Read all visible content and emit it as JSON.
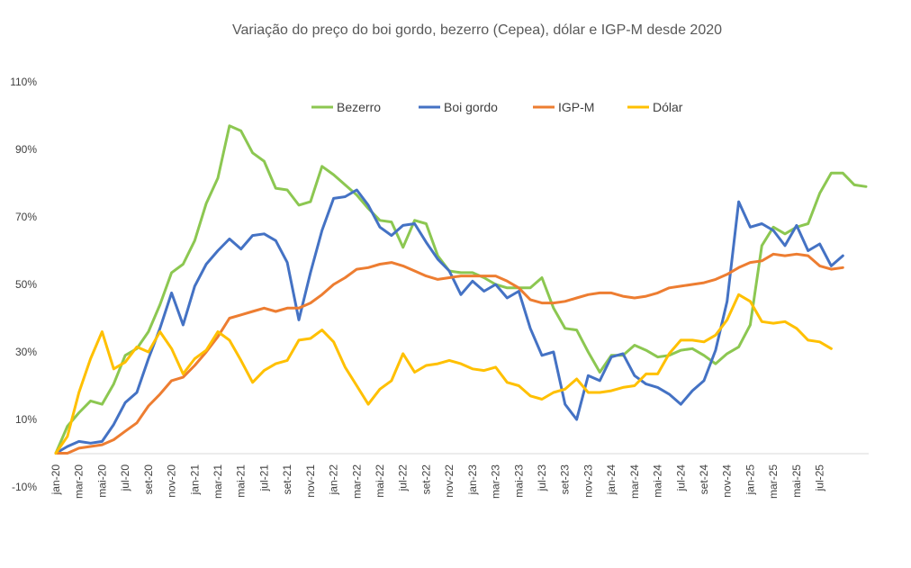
{
  "chart_data": {
    "type": "line",
    "title": "Variação do preço do boi gordo, bezerro (Cepea), dólar e IGP-M desde 2020",
    "xlabel": "",
    "ylabel": "",
    "ylim": [
      -10,
      110
    ],
    "yticks": [
      "-10%",
      "10%",
      "30%",
      "50%",
      "70%",
      "90%",
      "110%"
    ],
    "ytick_values": [
      -10,
      10,
      30,
      50,
      70,
      90,
      110
    ],
    "grid": false,
    "legend_position": "top-center",
    "x_labels": [
      "jan-20",
      "mar-20",
      "mai-20",
      "jul-20",
      "set-20",
      "nov-20",
      "jan-21",
      "mar-21",
      "mai-21",
      "jul-21",
      "set-21",
      "nov-21",
      "jan-22",
      "mar-22",
      "mai-22",
      "jul-22",
      "set-22",
      "nov-22",
      "jan-23",
      "mar-23",
      "mai-23",
      "jul-23",
      "set-23",
      "nov-23",
      "jan-24",
      "mar-24",
      "mai-24",
      "jul-24",
      "set-24",
      "nov-24",
      "jan-25",
      "mar-25",
      "mai-25",
      "jul-25"
    ],
    "x_label_step": 2,
    "series": [
      {
        "name": "Bezerro",
        "color": "#8CC751",
        "values": [
          0,
          8,
          12,
          15.5,
          14.5,
          20.5,
          29,
          31,
          36,
          44,
          53.5,
          56,
          63,
          74,
          81.5,
          97,
          95.5,
          89,
          86.5,
          78.5,
          78,
          73.5,
          74.5,
          85,
          82.5,
          79.5,
          76.5,
          72.5,
          69,
          68.5,
          61,
          69,
          68,
          58.5,
          54,
          53.5,
          53.5,
          52,
          50,
          49,
          49,
          49,
          52,
          43,
          37,
          36.5,
          30,
          24,
          29,
          29,
          32,
          30.5,
          28.5,
          29,
          30.5,
          31,
          29,
          26.5,
          29.5,
          31.5,
          38,
          61.5,
          67,
          65,
          67,
          68,
          77,
          83,
          83,
          79.5,
          79
        ]
      },
      {
        "name": "Boi gordo",
        "color": "#4472C4",
        "values": [
          0,
          2,
          3.5,
          3,
          3.5,
          8.5,
          15,
          18,
          28,
          37,
          47.5,
          38,
          49.5,
          56,
          60,
          63.5,
          60.5,
          64.5,
          65,
          63,
          56.5,
          39.5,
          53.5,
          66,
          75.5,
          76,
          78,
          73.5,
          67,
          64.5,
          67.5,
          68,
          62.5,
          57.5,
          54,
          47,
          51,
          48,
          50,
          46,
          48,
          37,
          29,
          30,
          14.5,
          10,
          23,
          21.5,
          28.5,
          29.5,
          23,
          20.5,
          19.5,
          17.5,
          14.5,
          18.5,
          21.5,
          30.5,
          45,
          74.5,
          67,
          68,
          66,
          61.5,
          67.5,
          60,
          62,
          55.5,
          58.5
        ]
      },
      {
        "name": "IGP-M",
        "color": "#ED7D31",
        "values": [
          0,
          0,
          1.5,
          2,
          2.5,
          4,
          6.5,
          9,
          14,
          17.5,
          21.5,
          22.5,
          26,
          30,
          34.5,
          40,
          41,
          42,
          43,
          42,
          43,
          43,
          44.5,
          47,
          50,
          52,
          54.5,
          55,
          56,
          56.5,
          55.5,
          54,
          52.5,
          51.5,
          52,
          52.5,
          52.5,
          52.5,
          52.5,
          51,
          49,
          45.5,
          44.5,
          44.5,
          45,
          46,
          47,
          47.5,
          47.5,
          46.5,
          46,
          46.5,
          47.5,
          49,
          49.5,
          50,
          50.5,
          51.5,
          53,
          55,
          56.5,
          57,
          59,
          58.5,
          59,
          58.5,
          55.5,
          54.5,
          55
        ]
      },
      {
        "name": "Dólar",
        "color": "#FFC000",
        "values": [
          0,
          5,
          18,
          28,
          36,
          25,
          27,
          31.5,
          30,
          36,
          31,
          23.5,
          28,
          30.5,
          36,
          33.5,
          27.5,
          21,
          24.5,
          26.5,
          27.5,
          33.5,
          34,
          36.5,
          33,
          25.5,
          20,
          14.5,
          19,
          21.5,
          29.5,
          24,
          26,
          26.5,
          27.5,
          26.5,
          25,
          24.5,
          25.5,
          21,
          20,
          17,
          16,
          18,
          19,
          22,
          18,
          18,
          18.5,
          19.5,
          20,
          23.5,
          23.5,
          29.5,
          33.5,
          33.5,
          33,
          35,
          39.5,
          47,
          45,
          39,
          38.5,
          39,
          37,
          33.5,
          33,
          31
        ]
      }
    ]
  }
}
